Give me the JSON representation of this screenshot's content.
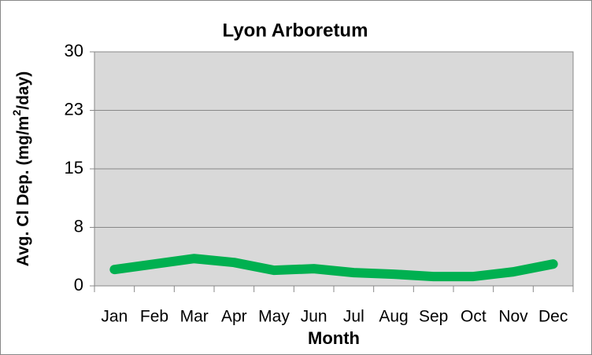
{
  "chart_data": {
    "type": "line",
    "title": "Lyon Arboretum",
    "x_label": "Month",
    "y_label": [
      "Avg. Cl Dep. (mg/m",
      "2",
      "/day)"
    ],
    "categories": [
      "Jan",
      "Feb",
      "Mar",
      "Apr",
      "May",
      "Jun",
      "Jul",
      "Aug",
      "Sep",
      "Oct",
      "Nov",
      "Dec"
    ],
    "values": [
      2.1,
      2.8,
      3.5,
      3.0,
      2.0,
      2.2,
      1.7,
      1.5,
      1.2,
      1.2,
      1.8,
      2.8
    ],
    "color": "#00b050",
    "ylim": [
      0,
      30
    ],
    "yticks": [
      0,
      {
        "value": 7.5,
        "label": "8"
      },
      15,
      {
        "value": 22.5,
        "label": "23"
      },
      30
    ],
    "grid": true
  }
}
